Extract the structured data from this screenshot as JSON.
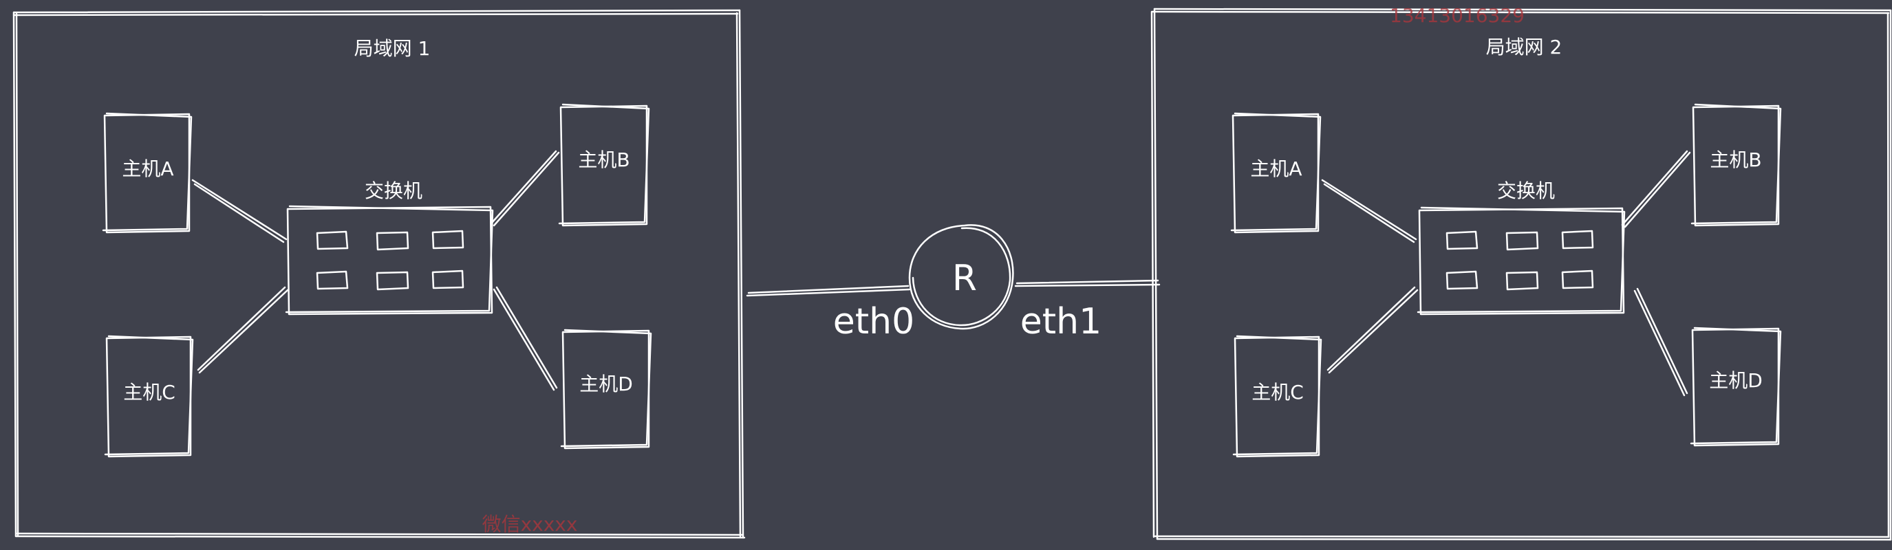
{
  "colors": {
    "background": "#3f414c",
    "stroke": "#ffffff",
    "watermark": "#a8363c"
  },
  "lan1": {
    "title": "局域网 1",
    "switch_label": "交换机",
    "hosts": {
      "a": "主机A",
      "b": "主机B",
      "c": "主机C",
      "d": "主机D"
    }
  },
  "lan2": {
    "title": "局域网 2",
    "switch_label": "交换机",
    "hosts": {
      "a": "主机A",
      "b": "主机B",
      "c": "主机C",
      "d": "主机D"
    }
  },
  "router": {
    "label": "R",
    "left_interface": "eth0",
    "right_interface": "eth1"
  },
  "watermarks": {
    "top": "13413016329",
    "bottom": "微信xxxxx"
  }
}
